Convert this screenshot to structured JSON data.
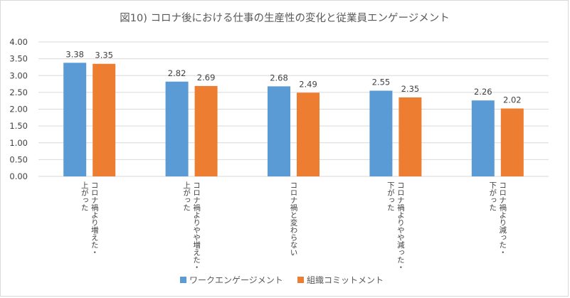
{
  "chart_data": {
    "type": "bar",
    "title": "図10) コロナ後における仕事の生産性の変化と従業員エンゲージメント",
    "categories": [
      [
        "コロナ禍より増えた・",
        "上がった"
      ],
      [
        "コロナ禍よりやや増えた・",
        "上がった"
      ],
      [
        "コロナ禍と変わらない"
      ],
      [
        "コロナ禍よりやや減った・",
        "下がった"
      ],
      [
        "コロナ禍より減った・",
        "下がった"
      ]
    ],
    "series": [
      {
        "name": "ワークエンゲージメント",
        "color": "#5b9bd5",
        "values": [
          3.38,
          2.82,
          2.68,
          2.55,
          2.26
        ]
      },
      {
        "name": "組織コミットメント",
        "color": "#ed7d31",
        "values": [
          3.35,
          2.69,
          2.49,
          2.35,
          2.02
        ]
      }
    ],
    "y_ticks": [
      "0.00",
      "0.50",
      "1.00",
      "1.50",
      "2.00",
      "2.50",
      "3.00",
      "3.50",
      "4.00"
    ],
    "ylim": [
      0,
      4
    ],
    "xlabel": "",
    "ylabel": "",
    "grid": true,
    "legend_position": "bottom"
  }
}
